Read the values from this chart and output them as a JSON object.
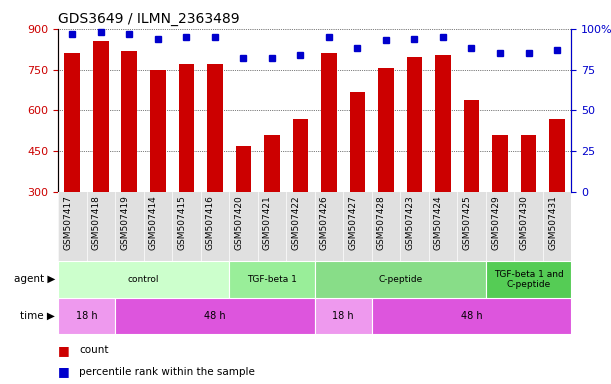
{
  "title": "GDS3649 / ILMN_2363489",
  "samples": [
    "GSM507417",
    "GSM507418",
    "GSM507419",
    "GSM507414",
    "GSM507415",
    "GSM507416",
    "GSM507420",
    "GSM507421",
    "GSM507422",
    "GSM507426",
    "GSM507427",
    "GSM507428",
    "GSM507423",
    "GSM507424",
    "GSM507425",
    "GSM507429",
    "GSM507430",
    "GSM507431"
  ],
  "counts": [
    810,
    855,
    820,
    750,
    770,
    770,
    468,
    508,
    570,
    810,
    668,
    755,
    795,
    805,
    638,
    508,
    510,
    570
  ],
  "percentiles": [
    97,
    98,
    97,
    94,
    95,
    95,
    82,
    82,
    84,
    95,
    88,
    93,
    94,
    95,
    88,
    85,
    85,
    87
  ],
  "ylim_left": [
    300,
    900
  ],
  "ylim_right": [
    0,
    100
  ],
  "yticks_left": [
    300,
    450,
    600,
    750,
    900
  ],
  "yticks_right": [
    0,
    25,
    50,
    75,
    100
  ],
  "bar_color": "#cc0000",
  "dot_color": "#0000cc",
  "agent_groups": [
    {
      "label": "control",
      "start": 0,
      "end": 6,
      "color": "#ccffcc"
    },
    {
      "label": "TGF-beta 1",
      "start": 6,
      "end": 9,
      "color": "#99ee99"
    },
    {
      "label": "C-peptide",
      "start": 9,
      "end": 15,
      "color": "#88dd88"
    },
    {
      "label": "TGF-beta 1 and\nC-peptide",
      "start": 15,
      "end": 18,
      "color": "#55cc55"
    }
  ],
  "time_groups": [
    {
      "label": "18 h",
      "start": 0,
      "end": 2,
      "color": "#ee99ee"
    },
    {
      "label": "48 h",
      "start": 2,
      "end": 9,
      "color": "#dd55dd"
    },
    {
      "label": "18 h",
      "start": 9,
      "end": 11,
      "color": "#ee99ee"
    },
    {
      "label": "48 h",
      "start": 11,
      "end": 18,
      "color": "#dd55dd"
    }
  ],
  "background_color": "#ffffff"
}
